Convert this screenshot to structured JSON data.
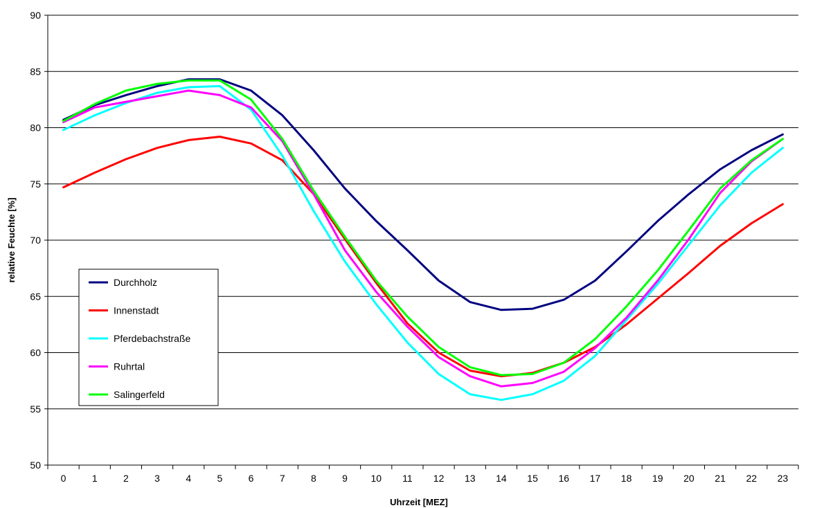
{
  "chart_data": {
    "type": "line",
    "title": "",
    "xlabel": "Uhrzeit [MEZ]",
    "ylabel": "relative Feuchte [%]",
    "ylim": [
      50,
      90
    ],
    "yticks": [
      50,
      55,
      60,
      65,
      70,
      75,
      80,
      85,
      90
    ],
    "grid": "horizontal",
    "legend_position": "left-middle",
    "categories": [
      "0",
      "1",
      "2",
      "3",
      "4",
      "5",
      "6",
      "7",
      "8",
      "9",
      "10",
      "11",
      "12",
      "13",
      "14",
      "15",
      "16",
      "17",
      "18",
      "19",
      "20",
      "21",
      "22",
      "23"
    ],
    "series": [
      {
        "name": "Durchholz",
        "color": "#000080",
        "values": [
          80.7,
          82.0,
          82.9,
          83.7,
          84.3,
          84.3,
          83.3,
          81.1,
          78.0,
          74.6,
          71.7,
          69.1,
          66.4,
          64.5,
          63.8,
          63.9,
          64.7,
          66.4,
          69.0,
          71.7,
          74.1,
          76.3,
          78.0,
          79.4
        ]
      },
      {
        "name": "Innenstadt",
        "color": "#ff0000",
        "values": [
          74.7,
          76.0,
          77.2,
          78.2,
          78.9,
          79.2,
          78.6,
          77.1,
          74.1,
          70.1,
          66.2,
          62.6,
          60.0,
          58.4,
          57.9,
          58.2,
          59.1,
          60.5,
          62.5,
          64.8,
          67.1,
          69.5,
          71.5,
          73.2
        ]
      },
      {
        "name": "Pferdebachstraße",
        "color": "#00ffff",
        "values": [
          79.8,
          81.1,
          82.2,
          83.1,
          83.6,
          83.7,
          81.6,
          77.5,
          72.6,
          68.1,
          64.3,
          60.9,
          58.1,
          56.3,
          55.8,
          56.3,
          57.5,
          59.7,
          62.9,
          66.1,
          69.6,
          73.1,
          76.0,
          78.2
        ]
      },
      {
        "name": "Ruhrtal",
        "color": "#ff00ff",
        "values": [
          80.5,
          81.8,
          82.3,
          82.8,
          83.3,
          82.9,
          81.8,
          78.8,
          74.1,
          69.1,
          65.4,
          62.3,
          59.6,
          57.9,
          57.0,
          57.3,
          58.3,
          60.4,
          63.1,
          66.4,
          70.1,
          74.2,
          77.0,
          79.0
        ]
      },
      {
        "name": "Salingerfeld",
        "color": "#00ff00",
        "values": [
          80.6,
          82.1,
          83.3,
          83.9,
          84.2,
          84.2,
          82.5,
          79.0,
          74.4,
          70.3,
          66.4,
          63.2,
          60.5,
          58.7,
          58.0,
          58.1,
          59.1,
          61.2,
          64.1,
          67.3,
          70.9,
          74.6,
          77.1,
          79.0
        ]
      }
    ]
  }
}
